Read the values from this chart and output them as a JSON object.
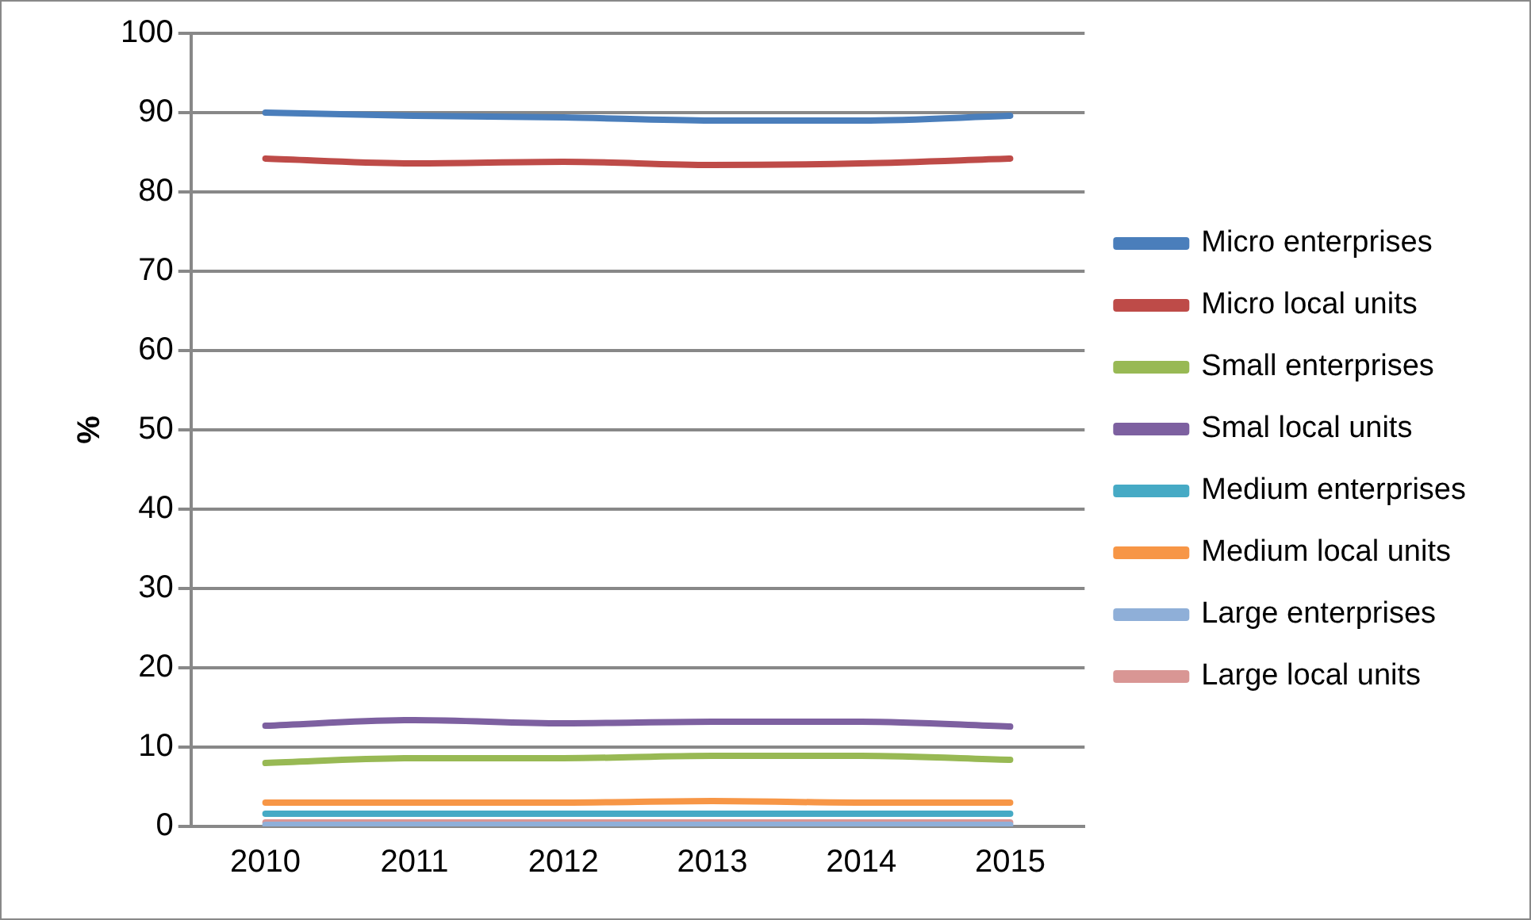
{
  "chart_data": {
    "type": "line",
    "ylabel": "%",
    "categories": [
      "2010",
      "2011",
      "2012",
      "2013",
      "2014",
      "2015"
    ],
    "series": [
      {
        "name": "Micro enterprises",
        "color": "#4a7ebb",
        "values": [
          90.0,
          89.6,
          89.4,
          89.0,
          89.0,
          89.6
        ]
      },
      {
        "name": "Micro local units",
        "color": "#be4b48",
        "values": [
          84.2,
          83.6,
          83.8,
          83.4,
          83.6,
          84.2
        ]
      },
      {
        "name": "Small enterprises",
        "color": "#98b954",
        "values": [
          8.0,
          8.6,
          8.6,
          8.9,
          8.9,
          8.4
        ]
      },
      {
        "name": "Smal local units",
        "color": "#7d60a0",
        "values": [
          12.7,
          13.4,
          13.0,
          13.2,
          13.2,
          12.6
        ]
      },
      {
        "name": "Medium enterprises",
        "color": "#46aac5",
        "values": [
          1.6,
          1.6,
          1.6,
          1.6,
          1.6,
          1.6
        ]
      },
      {
        "name": "Medium local units",
        "color": "#f79646",
        "values": [
          3.0,
          3.0,
          3.0,
          3.2,
          3.0,
          3.0
        ]
      },
      {
        "name": "Large enterprises",
        "color": "#8fafd8",
        "values": [
          0.2,
          0.2,
          0.2,
          0.2,
          0.2,
          0.2
        ]
      },
      {
        "name": "Large local units",
        "color": "#d99694",
        "values": [
          0.5,
          0.5,
          0.5,
          0.5,
          0.5,
          0.5
        ]
      }
    ],
    "ylim": [
      0,
      100
    ],
    "yticks": [
      0,
      10,
      20,
      30,
      40,
      50,
      60,
      70,
      80,
      90,
      100
    ],
    "grid": "y",
    "legend": "right",
    "marker": "none",
    "line_style": "solid"
  }
}
